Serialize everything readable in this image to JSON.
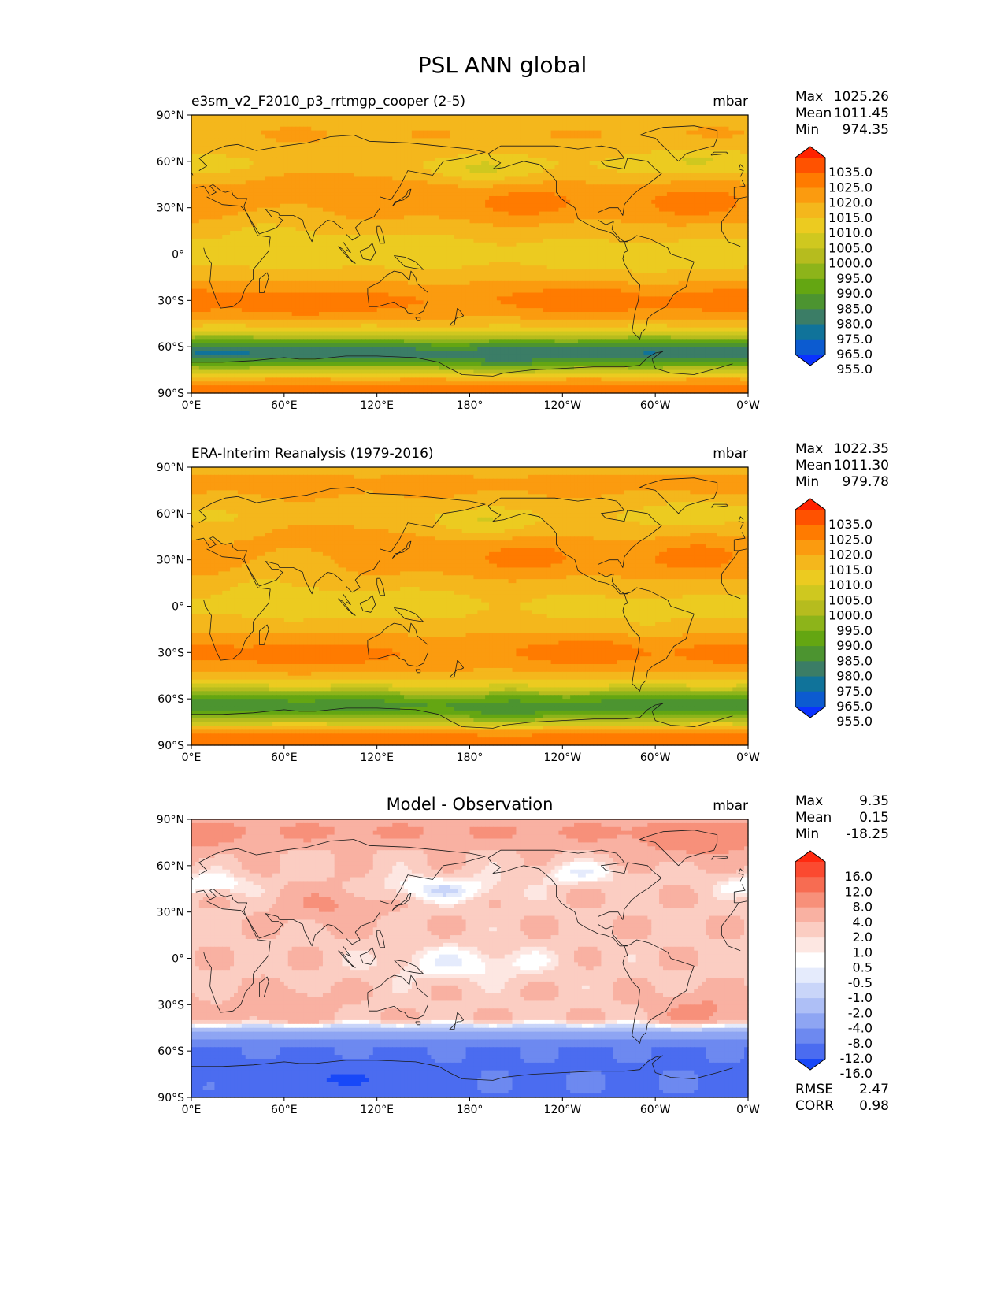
{
  "chart_data": {
    "type": "heatmap",
    "title": "PSL ANN global",
    "lat_ticks": [
      "90°N",
      "60°N",
      "30°N",
      "0°",
      "30°S",
      "60°S",
      "90°S"
    ],
    "lon_ticks": [
      "0°E",
      "60°E",
      "120°E",
      "180°",
      "120°W",
      "60°W",
      "0°W"
    ],
    "lon_range": [
      0,
      360
    ],
    "lat_range": [
      -90,
      90
    ],
    "panels": [
      {
        "id": "test",
        "title_left": "e3sm_v2_F2010_p3_rrtmgp_cooper (2-5)",
        "title_center": "",
        "units": "mbar",
        "field": "model",
        "stats": [
          {
            "label": "Max",
            "value": "1025.26"
          },
          {
            "label": "Mean",
            "value": "1011.45"
          },
          {
            "label": "Min",
            "value": "974.35"
          }
        ],
        "levels": [
          "1035.0",
          "1025.0",
          "1020.0",
          "1015.0",
          "1010.0",
          "1005.0",
          "1000.0",
          "995.0",
          "990.0",
          "985.0",
          "980.0",
          "975.0",
          "965.0",
          "955.0"
        ],
        "colors": [
          "#ff2200",
          "#ff5200",
          "#ff7b00",
          "#fb9b0f",
          "#f4b71c",
          "#eccb20",
          "#cfc81f",
          "#b6bc1e",
          "#8db41a",
          "#64a612",
          "#4c9430",
          "#3b7d66",
          "#10739a",
          "#0c5bd0",
          "#0a32ff"
        ]
      },
      {
        "id": "reference",
        "title_left": "ERA-Interim Reanalysis (1979-2016)",
        "title_center": "",
        "units": "mbar",
        "field": "obs",
        "stats": [
          {
            "label": "Max",
            "value": "1022.35"
          },
          {
            "label": "Mean",
            "value": "1011.30"
          },
          {
            "label": "Min",
            "value": "979.78"
          }
        ],
        "levels": [
          "1035.0",
          "1025.0",
          "1020.0",
          "1015.0",
          "1010.0",
          "1005.0",
          "1000.0",
          "995.0",
          "990.0",
          "985.0",
          "980.0",
          "975.0",
          "965.0",
          "955.0"
        ],
        "colors": [
          "#ff2200",
          "#ff5200",
          "#ff7b00",
          "#fb9b0f",
          "#f4b71c",
          "#eccb20",
          "#cfc81f",
          "#b6bc1e",
          "#8db41a",
          "#64a612",
          "#4c9430",
          "#3b7d66",
          "#10739a",
          "#0c5bd0",
          "#0a32ff"
        ]
      },
      {
        "id": "difference",
        "title_left": "",
        "title_center": "Model - Observation",
        "units": "mbar",
        "field": "diff",
        "stats": [
          {
            "label": "Max",
            "value": "9.35"
          },
          {
            "label": "Mean",
            "value": "0.15"
          },
          {
            "label": "Min",
            "value": "-18.25"
          }
        ],
        "extra_stats": [
          {
            "label": "RMSE",
            "value": "2.47"
          },
          {
            "label": "CORR",
            "value": "0.98"
          }
        ],
        "levels": [
          "16.0",
          "12.0",
          "8.0",
          "4.0",
          "2.0",
          "1.0",
          "0.5",
          "-0.5",
          "-1.0",
          "-2.0",
          "-4.0",
          "-8.0",
          "-12.0",
          "-16.0"
        ],
        "colors": [
          "#ff2a10",
          "#fb4a30",
          "#f76c52",
          "#f7907a",
          "#f9b1a2",
          "#fbcdc2",
          "#fde7e2",
          "#ffffff",
          "#e5ebfc",
          "#c9d5f9",
          "#aebff6",
          "#8ea5f3",
          "#6d89f0",
          "#4b6cf0",
          "#1848f8"
        ]
      }
    ]
  },
  "colors": {
    "coastline": "#1a1a1a",
    "axis": "#000000"
  }
}
